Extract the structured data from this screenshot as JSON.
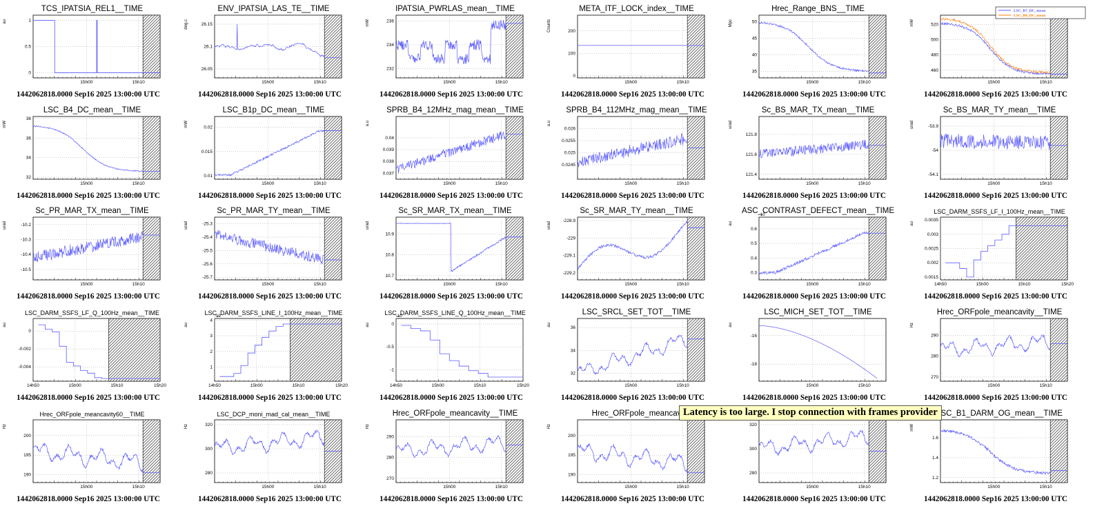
{
  "banner": "Latency is too large. I stop connection with frames provider",
  "footer": "1442062818.0000 Sep16 2025 13:00:00 UTC",
  "colors": {
    "line": "#5a5aff",
    "line2": "#ff7a00",
    "hatch": "#444444",
    "grid": "#999999"
  },
  "chart_data": [
    {
      "type": "line",
      "title": "TCS_IPATSIA_REL1__TIME",
      "ylabel": "au",
      "ylim": [
        -0.1,
        1.1
      ],
      "yticks": [
        0,
        0.5,
        1
      ],
      "yticklabels": [
        "0",
        "0.5",
        "1"
      ],
      "xticks": [
        "15h00",
        "15h10"
      ],
      "hatch": true,
      "kind": "step01",
      "level": 0.0
    },
    {
      "type": "line",
      "title": "ENV_IPATSIA_LAS_TE__TIME",
      "ylabel": "deg.c",
      "ylim": [
        26.03,
        26.17
      ],
      "yticks": [
        26.05,
        26.1,
        26.15
      ],
      "yticklabels": [
        "26.05",
        "26.1",
        "26.15"
      ],
      "xticks": [
        "15h00",
        "15h10"
      ],
      "hatch": true,
      "kind": "walk",
      "start": 26.1,
      "end": 26.08,
      "noise": 0.006,
      "level": 26.075
    },
    {
      "type": "line",
      "title": "IPATSIA_PWRLAS_mean__TIME",
      "ylabel": "mW",
      "ylim": [
        231.2,
        236.5
      ],
      "yticks": [
        232,
        234,
        236
      ],
      "yticklabels": [
        "232",
        "234",
        "236"
      ],
      "xticks": [
        "15h00",
        "15h10"
      ],
      "hatch": true,
      "kind": "jumpy",
      "start": 234,
      "end": 235.7,
      "noise": 0.9,
      "level": 235.8
    },
    {
      "type": "line",
      "title": "META_ITF_LOCK_index__TIME",
      "ylabel": "Counts",
      "ylim": [
        -10,
        270
      ],
      "yticks": [
        0,
        100,
        200
      ],
      "yticklabels": [
        "0",
        "100",
        "200"
      ],
      "xticks": [
        "15h00",
        "15h10"
      ],
      "hatch": true,
      "kind": "flat",
      "level": 135
    },
    {
      "type": "line",
      "title": "Hrec_Range_BNS__TIME",
      "ylabel": "Mpc",
      "ylim": [
        33,
        52
      ],
      "yticks": [
        35,
        40,
        45,
        50
      ],
      "yticklabels": [
        "35",
        "40",
        "45",
        "50"
      ],
      "xticks": [
        "15h00",
        "15h10"
      ],
      "hatch": true,
      "kind": "decline",
      "start": 50,
      "end": 35,
      "noise": 0.6,
      "level": 34.5
    },
    {
      "type": "line",
      "title": "",
      "ylabel": "mW",
      "ylim": [
        450,
        532
      ],
      "yticks": [
        460,
        480,
        500,
        520
      ],
      "yticklabels": [
        "460",
        "480",
        "500",
        "520"
      ],
      "xticks": [
        "15h00",
        "15h10"
      ],
      "hatch": true,
      "kind": "decline2",
      "start": 522,
      "end": 455,
      "noise": 3,
      "level": 455,
      "legend": [
        "LSC_B7_DC_mean",
        "LSC_B8_DC_mean"
      ]
    },
    {
      "type": "line",
      "title": "LSC_B4_DC_mean__TIME",
      "ylabel": "mW",
      "ylim": [
        31.8,
        38.2
      ],
      "yticks": [
        32,
        34,
        36,
        38
      ],
      "yticklabels": [
        "32",
        "34",
        "36",
        "38"
      ],
      "xticks": [
        "15h00",
        "15h10"
      ],
      "hatch": true,
      "kind": "decline",
      "start": 37.3,
      "end": 32.6,
      "noise": 0.12,
      "level": 32.6
    },
    {
      "type": "line",
      "title": "LSC_B1p_DC_mean__TIME",
      "ylabel": "mW",
      "ylim": [
        0.0093,
        0.0222
      ],
      "yticks": [
        0.01,
        0.015,
        0.02
      ],
      "yticklabels": [
        "0.01",
        "0.015",
        "0.02"
      ],
      "xticks": [
        "15h00",
        "15h10"
      ],
      "hatch": true,
      "kind": "rise",
      "start": 0.0102,
      "end": 0.0192,
      "noise": 0.0004,
      "level": 0.0193
    },
    {
      "type": "line",
      "title": "SPRB_B4_12MHz_mag_mean__TIME",
      "ylabel": "a.u",
      "ylim": [
        0.0365,
        0.0418
      ],
      "yticks": [
        0.037,
        0.038,
        0.039,
        0.04
      ],
      "yticklabels": [
        "0.037",
        "0.038",
        "0.039",
        "0.04"
      ],
      "xticks": [
        "15h00",
        "15h10"
      ],
      "hatch": true,
      "kind": "noisyrise",
      "start": 0.0373,
      "end": 0.0403,
      "noise": 0.0004,
      "level": 0.0403
    },
    {
      "type": "line",
      "title": "SPRB_B4_112MHz_mag_mean__TIME",
      "ylabel": "a.u",
      "ylim": [
        0.0239,
        0.0265
      ],
      "yticks": [
        0.0245,
        0.025,
        0.0255,
        0.026
      ],
      "yticklabels": [
        "0.0245",
        "0.025",
        "0.0255",
        "0.026"
      ],
      "xticks": [
        "15h00",
        "15h10"
      ],
      "hatch": true,
      "kind": "noisyrise",
      "start": 0.0246,
      "end": 0.0256,
      "noise": 0.00025,
      "level": 0.0252
    },
    {
      "type": "line",
      "title": "Sc_BS_MAR_TX_mean__TIME",
      "ylabel": "urad",
      "ylim": [
        121.35,
        121.98
      ],
      "yticks": [
        121.4,
        121.6,
        121.8
      ],
      "yticklabels": [
        "121.4",
        "121.6",
        "121.8"
      ],
      "xticks": [
        "15h00",
        "15h10"
      ],
      "hatch": true,
      "kind": "noisyrise",
      "start": 121.6,
      "end": 121.7,
      "noise": 0.05,
      "level": 121.69
    },
    {
      "type": "line",
      "title": "Sc_BS_MAR_TY_mean__TIME",
      "ylabel": "urad",
      "ylim": [
        -54.12,
        -53.86
      ],
      "yticks": [
        -54.1,
        -54,
        -53.9
      ],
      "yticklabels": [
        "-54.1",
        "-54",
        "-53.9"
      ],
      "xticks": [
        "15h00",
        "15h10"
      ],
      "hatch": true,
      "kind": "noisy",
      "start": -53.96,
      "end": -53.97,
      "noise": 0.03,
      "level": -53.98
    },
    {
      "type": "line",
      "title": "Sc_PR_MAR_TX_mean__TIME",
      "ylabel": "urad",
      "ylim": [
        -10.57,
        -10.15
      ],
      "yticks": [
        -10.5,
        -10.4,
        -10.3,
        -10.2
      ],
      "yticklabels": [
        "-10.5",
        "-10.4",
        "-10.3",
        "-10.2"
      ],
      "xticks": [
        "15h00",
        "15h10"
      ],
      "hatch": true,
      "kind": "noisyrise",
      "start": -10.42,
      "end": -10.28,
      "noise": 0.04,
      "level": -10.27
    },
    {
      "type": "line",
      "title": "Sc_PR_MAR_TY_mean__TIME",
      "ylabel": "urad",
      "ylim": [
        -25.72,
        -25.25
      ],
      "yticks": [
        -25.7,
        -25.6,
        -25.5,
        -25.4,
        -25.3
      ],
      "yticklabels": [
        "-25.7",
        "-25.6",
        "-25.5",
        "-25.4",
        "-25.3"
      ],
      "xticks": [
        "15h00",
        "15h10"
      ],
      "hatch": true,
      "kind": "noisydecline",
      "start": -25.38,
      "end": -25.57,
      "noise": 0.04,
      "level": -25.57
    },
    {
      "type": "line",
      "title": "Sc_SR_MAR_TX_mean__TIME",
      "ylabel": "urad",
      "ylim": [
        10.68,
        10.98
      ],
      "yticks": [
        10.7,
        10.8,
        10.9
      ],
      "yticklabels": [
        "10.7",
        "10.8",
        "10.9"
      ],
      "xticks": [
        "15h00",
        "15h10"
      ],
      "hatch": true,
      "kind": "drop_recover",
      "start": 10.95,
      "end": 10.885,
      "noise": 0.003,
      "level": 10.885
    },
    {
      "type": "line",
      "title": "Sc_SR_MAR_TY_mean__TIME",
      "ylabel": "urad",
      "ylim": [
        -229.24,
        -228.88
      ],
      "yticks": [
        -229.2,
        -229.1,
        -229,
        -228.9
      ],
      "yticklabels": [
        "-229.2",
        "-229.1",
        "-229",
        "-228.9"
      ],
      "xticks": [
        "15h00",
        "15h10"
      ],
      "hatch": true,
      "kind": "hump",
      "start": -229.18,
      "end": -228.95,
      "noise": 0.008,
      "level": -228.94
    },
    {
      "type": "line",
      "title": "ASC_CONTRAST_DEFECT_mean__TIME",
      "ylabel": "au",
      "yexp": "-10",
      "ylim": [
        0.25,
        0.68
      ],
      "yticks": [
        0.3,
        0.4,
        0.5,
        0.6
      ],
      "yticklabels": [
        "0.3",
        "0.4",
        "0.5",
        "0.6"
      ],
      "xticks": [
        "15h00",
        "15h10"
      ],
      "hatch": true,
      "kind": "rise",
      "start": 0.3,
      "end": 0.57,
      "noise": 0.02,
      "level": 0.57
    },
    {
      "type": "line",
      "title": "LSC_DARM_SSFS_LF_I_100Hz_mean__TIME",
      "ylabel": "au",
      "ylim": [
        0.0014,
        0.0036
      ],
      "yticks": [
        0.0015,
        0.002,
        0.0025,
        0.003,
        0.0035
      ],
      "yticklabels": [
        "0.0015",
        "0.002",
        "0.0025",
        "0.003",
        "0.0035"
      ],
      "xticks": [
        "14h50",
        "15h00",
        "15h10",
        "15h20"
      ],
      "hatch": true,
      "hatchStart": 0.595,
      "kind": "steps",
      "steps": [
        0.002,
        0.002,
        0.0018,
        0.0015,
        0.0021,
        0.0024,
        0.0026,
        0.0028,
        0.003,
        0.0033
      ],
      "level": 0.0033
    },
    {
      "type": "line",
      "title": "LSC_DARM_SSFS_LF_Q_100Hz_mean__TIME",
      "ylabel": "au",
      "ylim": [
        -0.0056,
        0.0014
      ],
      "yticks": [
        -0.004,
        -0.002,
        0
      ],
      "yticklabels": [
        "-0.004",
        "-0.002",
        "0"
      ],
      "xticks": [
        "14h50",
        "15h00",
        "15h10",
        "15h20"
      ],
      "hatch": true,
      "hatchStart": 0.595,
      "kind": "steps",
      "steps": [
        0.0007,
        0.0002,
        -0.0001,
        -0.0017,
        -0.0035,
        -0.0039,
        -0.0044,
        -0.0047,
        -0.0052,
        -0.0053
      ],
      "level": -0.0053
    },
    {
      "type": "line",
      "title": "LSC_DARM_SSFS_LINE_I_100Hz_mean__TIME",
      "ylabel": "au",
      "yexp": "-10",
      "ylim": [
        0.1,
        4.1
      ],
      "yticks": [
        1,
        2,
        3,
        4
      ],
      "yticklabels": [
        "1",
        "2",
        "3",
        "4"
      ],
      "xticks": [
        "14h50",
        "15h00",
        "15h10",
        "15h20"
      ],
      "hatch": true,
      "hatchStart": 0.595,
      "kind": "steps",
      "steps": [
        0.4,
        0.4,
        0.6,
        1.1,
        1.9,
        2.4,
        2.9,
        3.3,
        3.6,
        3.75
      ],
      "level": 3.75
    },
    {
      "type": "line",
      "title": "LSC_DARM_SSFS_LINE_Q_100Hz_mean__TIME",
      "ylabel": "au",
      "yexp": "-10",
      "ylim": [
        -1.25,
        0.12
      ],
      "yticks": [
        -1,
        -0.5,
        0
      ],
      "yticklabels": [
        "-1",
        "-0.5",
        "0"
      ],
      "xticks": [
        "14h50",
        "15h00",
        "15h10",
        "15h20"
      ],
      "hatch": false,
      "kind": "steps",
      "steps": [
        -0.03,
        -0.1,
        -0.15,
        -0.35,
        -0.65,
        -0.8,
        -0.92,
        -1.02,
        -1.08,
        -1.16
      ],
      "level": -1.16
    },
    {
      "type": "line",
      "title": "LSC_SRCL_SET_TOT__TIME",
      "ylabel": "au",
      "ylim": [
        31.3,
        36.8
      ],
      "yticks": [
        32,
        34,
        36
      ],
      "yticklabels": [
        "32",
        "34",
        "36"
      ],
      "xticks": [
        "15h00",
        "15h10"
      ],
      "hatch": true,
      "kind": "wavy",
      "start": 32,
      "end": 35,
      "noise": 0.9,
      "level": 35
    },
    {
      "type": "line",
      "title": "LSC_MICH_SET_TOT__TIME",
      "ylabel": "au",
      "ylim": [
        -19.2,
        -14.8
      ],
      "yticks": [
        -18,
        -16
      ],
      "yticklabels": [
        "-18",
        "-16"
      ],
      "xticks": [
        "15h00",
        "15h10"
      ],
      "hatch": false,
      "kind": "arc",
      "start": -15.3,
      "end": -19.0,
      "level": -19.0
    },
    {
      "type": "line",
      "title": "Hrec_ORFpole_meancavity__TIME",
      "ylabel": "Hz",
      "ylim": [
        268,
        298
      ],
      "yticks": [
        270,
        280,
        290
      ],
      "yticklabels": [
        "270",
        "280",
        "290"
      ],
      "xticks": [
        "15h00",
        "15h10"
      ],
      "hatch": true,
      "kind": "wavy",
      "start": 283,
      "end": 287,
      "noise": 5,
      "level": 286
    },
    {
      "type": "line",
      "title": "Hrec_ORFpole_meancavity60__TIME",
      "ylabel": "Hz",
      "ylim": [
        188,
        204
      ],
      "yticks": [
        190,
        195,
        200
      ],
      "yticklabels": [
        "190",
        "195",
        "200"
      ],
      "xticks": [
        "15h00",
        "15h10"
      ],
      "hatch": true,
      "kind": "wavy",
      "start": 196,
      "end": 193,
      "noise": 3,
      "level": 190.5
    },
    {
      "type": "line",
      "title": "LSC_DCP_moni_mad_cal_mean__TIME",
      "ylabel": "Hz",
      "ylim": [
        272,
        324
      ],
      "yticks": [
        280,
        300,
        320
      ],
      "yticklabels": [
        "280",
        "300",
        "320"
      ],
      "xticks": [
        "15h00",
        "15h10"
      ],
      "hatch": true,
      "kind": "wavy",
      "start": 300,
      "end": 310,
      "noise": 9,
      "level": 298
    },
    {
      "type": "line",
      "title": "Hrec_ORFpole_meancavity__TIME",
      "ylabel": "Hz",
      "ylim": [
        268,
        298
      ],
      "yticks": [
        270,
        280,
        290
      ],
      "yticklabels": [
        "270",
        "280",
        "290"
      ],
      "xticks": [
        "15h00",
        "15h10"
      ],
      "hatch": true,
      "kind": "wavy",
      "start": 283,
      "end": 287,
      "noise": 5,
      "level": 286
    },
    {
      "type": "line",
      "title": "Hrec_ORFpole_meancav",
      "ylabel": "Hz",
      "ylim": [
        188,
        204
      ],
      "yticks": [
        190,
        195,
        200
      ],
      "yticklabels": [
        "190",
        "195",
        "200"
      ],
      "xticks": [
        "15h00",
        "15h10"
      ],
      "hatch": true,
      "kind": "wavy",
      "start": 196,
      "end": 193,
      "noise": 3,
      "level": 190.5
    },
    {
      "type": "line",
      "title": "",
      "ylabel": "",
      "ylim": [
        272,
        324
      ],
      "yticks": [
        280,
        300,
        320
      ],
      "yticklabels": [
        "280",
        "300",
        "320"
      ],
      "xticks": [
        "15h00",
        "15h10"
      ],
      "hatch": true,
      "kind": "wavy",
      "start": 300,
      "end": 310,
      "noise": 9,
      "level": 298
    },
    {
      "type": "line",
      "title": "LSC_B1_DARM_OG_mean__TIME",
      "ylabel": "mW",
      "ylim": [
        1.15,
        1.78
      ],
      "yticks": [
        1.2,
        1.4,
        1.6
      ],
      "yticklabels": [
        "1.2",
        "1.4",
        "1.6"
      ],
      "xticks": [
        "15h00",
        "15h10"
      ],
      "hatch": true,
      "kind": "decline",
      "start": 1.68,
      "end": 1.24,
      "noise": 0.03,
      "level": 1.27
    }
  ]
}
